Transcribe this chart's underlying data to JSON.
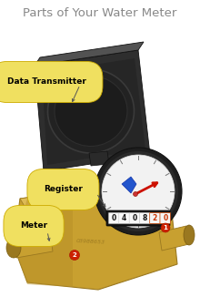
{
  "title": "Parts of Your Water Meter",
  "title_fontsize": 9.5,
  "title_color": "#888888",
  "bg_color": "#ffffff",
  "labels": {
    "data_transmitter": "Data Transmitter",
    "register": "Register",
    "meter": "Meter"
  },
  "label_bg": "#f0e060",
  "label_fontsize": 6.5,
  "label_fontweight": "bold",
  "colors": {
    "tx_front": "#2e2e2e",
    "tx_top": "#525252",
    "tx_right": "#1a1a1a",
    "tx_rim": "#3a3a3a",
    "tx_inner": "#222222",
    "meter_main": "#c8a030",
    "meter_shade": "#9a7820",
    "meter_light": "#debb55",
    "meter_dark": "#7a5c10",
    "dial_outer": "#2a2a2a",
    "dial_face": "#f2f2f2",
    "dial_tick": "#777777",
    "needle": "#cc1100",
    "blue_blob": "#2255cc",
    "reg_bg": "#1a1a1a",
    "reg_white": "#ffffff",
    "reg_red_text": "#cc3300",
    "circle_red": "#cc2200",
    "pipe_end": "#7a6015"
  },
  "figsize": [
    2.2,
    3.26
  ],
  "dpi": 100
}
